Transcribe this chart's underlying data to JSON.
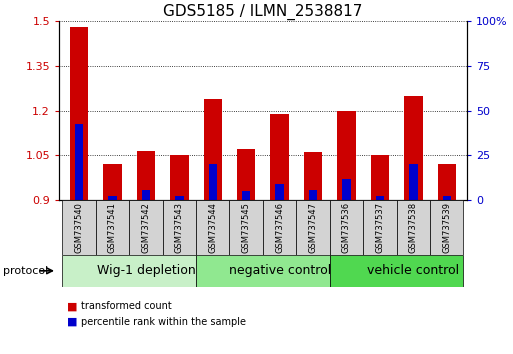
{
  "title": "GDS5185 / ILMN_2538817",
  "samples": [
    "GSM737540",
    "GSM737541",
    "GSM737542",
    "GSM737543",
    "GSM737544",
    "GSM737545",
    "GSM737546",
    "GSM737547",
    "GSM737536",
    "GSM737537",
    "GSM737538",
    "GSM737539"
  ],
  "red_values": [
    1.48,
    1.02,
    1.065,
    1.05,
    1.24,
    1.07,
    1.19,
    1.06,
    1.2,
    1.05,
    1.25,
    1.02
  ],
  "blue_values": [
    1.155,
    0.915,
    0.935,
    0.915,
    1.02,
    0.93,
    0.955,
    0.935,
    0.97,
    0.915,
    1.02,
    0.915
  ],
  "ymin": 0.9,
  "ymax": 1.5,
  "yticks_left": [
    0.9,
    1.05,
    1.2,
    1.35,
    1.5
  ],
  "yticks_right_vals": [
    0,
    25,
    50,
    75,
    100
  ],
  "groups": [
    {
      "label": "Wig-1 depletion",
      "start": 0,
      "end": 4,
      "color": "#c8f0c8"
    },
    {
      "label": "negative control",
      "start": 4,
      "end": 8,
      "color": "#90e890"
    },
    {
      "label": "vehicle control",
      "start": 8,
      "end": 12,
      "color": "#50d850"
    }
  ],
  "protocol_label": "protocol",
  "red_color": "#cc0000",
  "blue_color": "#0000cc",
  "bar_width": 0.55,
  "blue_bar_width": 0.25,
  "tick_color_left": "#cc0000",
  "tick_color_right": "#0000cc",
  "legend_red": "transformed count",
  "legend_blue": "percentile rank within the sample",
  "title_fontsize": 11,
  "tick_fontsize": 8,
  "sample_fontsize": 6,
  "group_fontsize": 9,
  "protocol_fontsize": 8
}
